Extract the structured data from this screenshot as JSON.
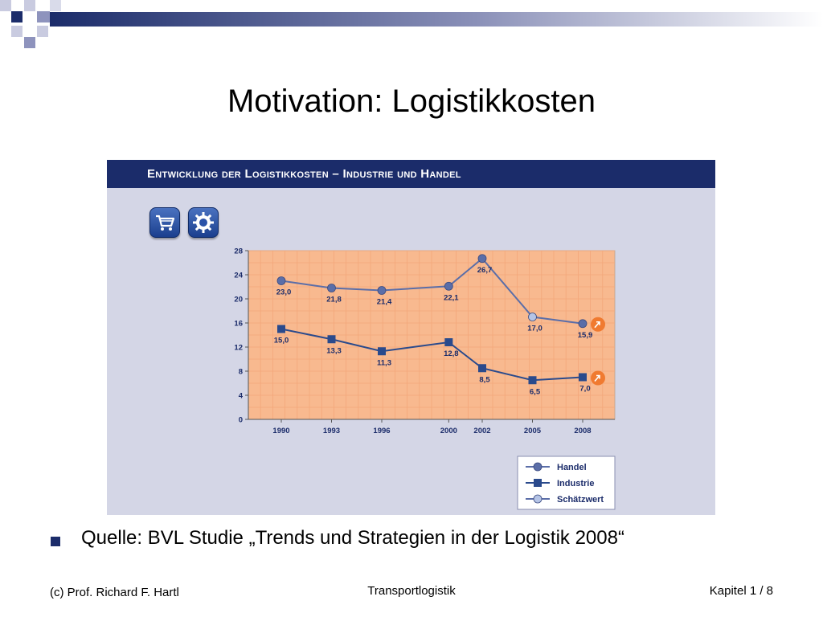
{
  "slide": {
    "title": "Motivation: Logistikkosten",
    "source_text": "Quelle: BVL Studie „Trends und Strategien in der Logistik 2008“",
    "footer_left": "(c) Prof. Richard F. Hartl",
    "footer_center": "Transportlogistik",
    "footer_right": "Kapitel 1 / 8"
  },
  "panel": {
    "header": "Entwicklung der Logistikkosten – Industrie und Handel",
    "icons": [
      "shopping-cart-icon",
      "gear-icon"
    ],
    "header_color": "#1b2c6a",
    "background_color": "#d4d6e6"
  },
  "chart_data": {
    "type": "line",
    "title": "Entwicklung der Logistikkosten – Industrie und Handel",
    "x": [
      1990,
      1993,
      1996,
      2000,
      2002,
      2005,
      2008
    ],
    "x_tick_labels": [
      "1990",
      "1993",
      "1996",
      "2000",
      "2002",
      "2005",
      "2008"
    ],
    "y_ticks": [
      0,
      4,
      8,
      12,
      16,
      20,
      24,
      28
    ],
    "ylim": [
      0,
      28
    ],
    "grid": true,
    "plot_background": "#f8b98f",
    "series": [
      {
        "name": "Handel",
        "marker": "circle",
        "color": "#5b6ea8",
        "values": [
          23.0,
          21.8,
          21.4,
          22.1,
          26.7,
          17.0,
          15.9
        ],
        "labels": [
          "23,0",
          "21,8",
          "21,4",
          "22,1",
          "26,7",
          "17,0",
          "15,9"
        ],
        "estimated_from_index": 5
      },
      {
        "name": "Industrie",
        "marker": "square",
        "color": "#2a4a8c",
        "values": [
          15.0,
          13.3,
          11.3,
          12.8,
          8.5,
          6.5,
          7.0
        ],
        "labels": [
          "15,0",
          "13,3",
          "11,3",
          "12,8",
          "8,5",
          "6,5",
          "7,0"
        ]
      }
    ],
    "legend": {
      "position": "bottom-right",
      "entries": [
        {
          "label": "Handel",
          "marker": "circle"
        },
        {
          "label": "Industrie",
          "marker": "square"
        },
        {
          "label": "Schätzwert",
          "marker": "circle-light"
        }
      ]
    },
    "estimate_color": "#b5c4e6",
    "callout_color": "#f07a30"
  }
}
